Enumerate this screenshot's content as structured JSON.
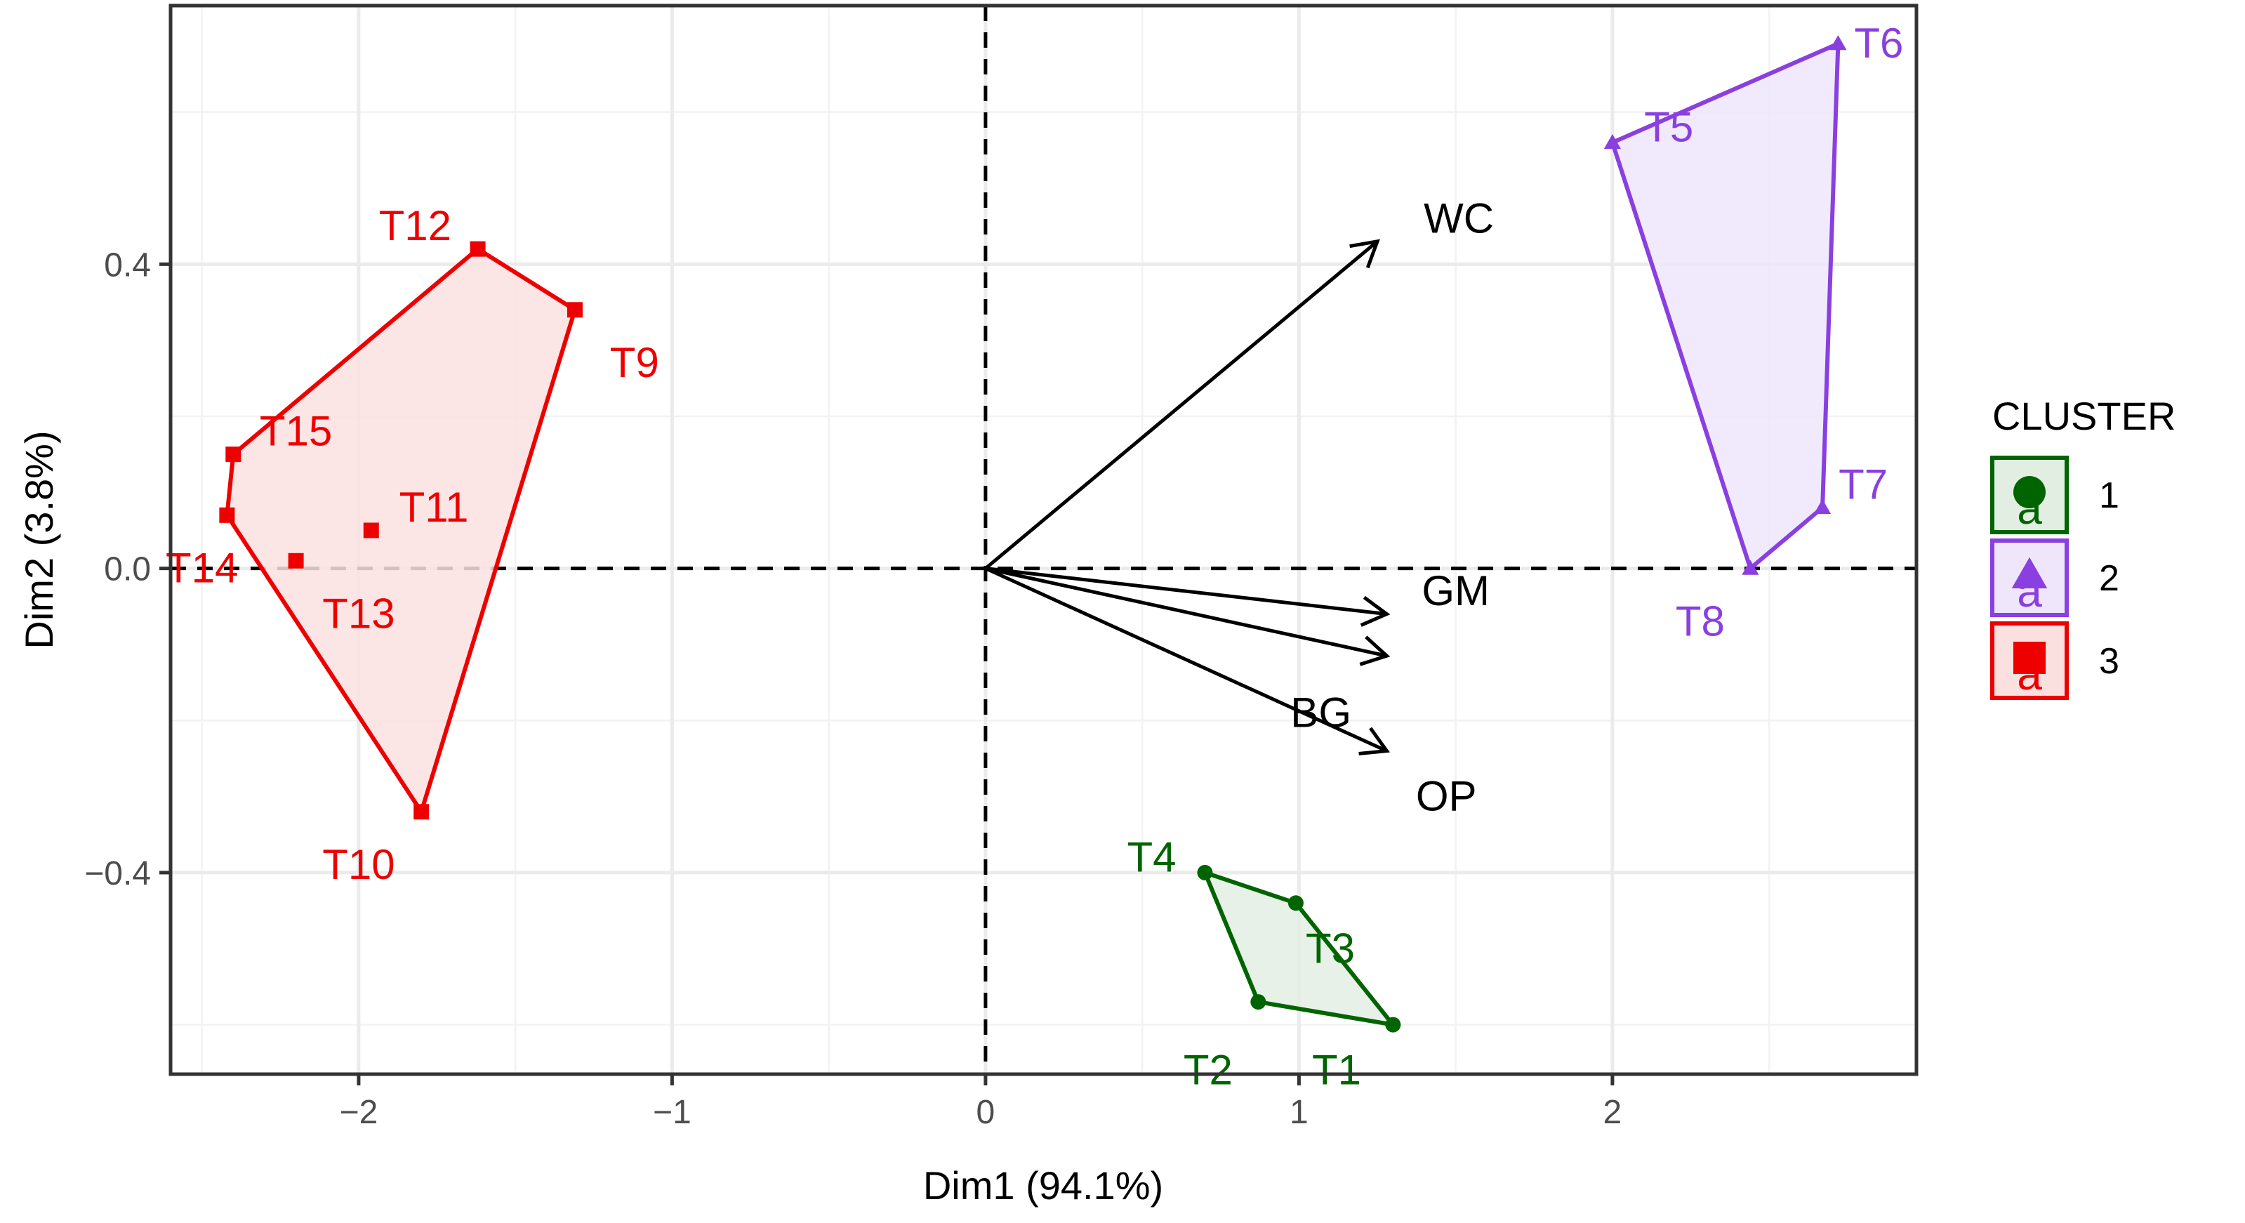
{
  "chart_data": {
    "type": "scatter",
    "subtype": "pca-biplot-with-cluster-hulls",
    "title": "",
    "xlabel": "Dim1 (94.1%)",
    "ylabel": "Dim2 (3.8%)",
    "xlim": [
      -2.6,
      2.97
    ],
    "ylim": [
      -0.665,
      0.74
    ],
    "x_ticks": [
      -2,
      -1,
      0,
      1,
      2
    ],
    "x_tick_labels": [
      "−2",
      "−1",
      "0",
      "1",
      "2"
    ],
    "y_ticks": [
      -0.4,
      0.0,
      0.4
    ],
    "y_tick_labels": [
      "−0.4",
      "0.0",
      "0.4"
    ],
    "grid": true,
    "reference_lines": {
      "x": 0,
      "y": 0,
      "style": "dashed"
    },
    "legend": {
      "title": "CLUSTER",
      "position": "right",
      "key_glyph_text": "a",
      "entries": [
        {
          "label": "1",
          "color": "#006400",
          "shape": "circle"
        },
        {
          "label": "2",
          "color": "#8A3FE0",
          "shape": "triangle"
        },
        {
          "label": "3",
          "color": "#EE0000",
          "shape": "square"
        }
      ]
    },
    "clusters": [
      {
        "cluster": "1",
        "color": "#006400",
        "fill": "#E3EEE3",
        "shape": "circle",
        "hull": [
          "T4",
          "T3",
          "T1",
          "T2"
        ],
        "points": [
          {
            "label": "T1",
            "x": 1.3,
            "y": -0.6
          },
          {
            "label": "T2",
            "x": 0.87,
            "y": -0.57
          },
          {
            "label": "T3",
            "x": 0.99,
            "y": -0.44
          },
          {
            "label": "T4",
            "x": 0.7,
            "y": -0.4
          }
        ]
      },
      {
        "cluster": "2",
        "color": "#8A3FE0",
        "fill": "#EFE6FB",
        "shape": "triangle",
        "hull": [
          "T5",
          "T6",
          "T7",
          "T8"
        ],
        "points": [
          {
            "label": "T5",
            "x": 2.0,
            "y": 0.56
          },
          {
            "label": "T6",
            "x": 2.72,
            "y": 0.69
          },
          {
            "label": "T7",
            "x": 2.67,
            "y": 0.08
          },
          {
            "label": "T8",
            "x": 2.44,
            "y": 0.0
          }
        ]
      },
      {
        "cluster": "3",
        "color": "#EE0000",
        "fill": "#FBE0E0",
        "shape": "square",
        "hull": [
          "T12",
          "T9",
          "T10",
          "T14",
          "T15"
        ],
        "points": [
          {
            "label": "T9",
            "x": -1.31,
            "y": 0.34
          },
          {
            "label": "T10",
            "x": -1.8,
            "y": -0.32
          },
          {
            "label": "T11",
            "x": -1.96,
            "y": 0.05
          },
          {
            "label": "T12",
            "x": -1.62,
            "y": 0.42
          },
          {
            "label": "T13",
            "x": -2.2,
            "y": 0.01
          },
          {
            "label": "T14",
            "x": -2.42,
            "y": 0.07
          },
          {
            "label": "T15",
            "x": -2.4,
            "y": 0.15
          }
        ]
      }
    ],
    "variables": [
      {
        "label": "WC",
        "x": 1.25,
        "y": 0.43
      },
      {
        "label": "GM",
        "x": 1.28,
        "y": -0.06
      },
      {
        "label": "BG",
        "x": 1.28,
        "y": -0.115
      },
      {
        "label": "OP",
        "x": 1.28,
        "y": -0.24
      }
    ]
  }
}
